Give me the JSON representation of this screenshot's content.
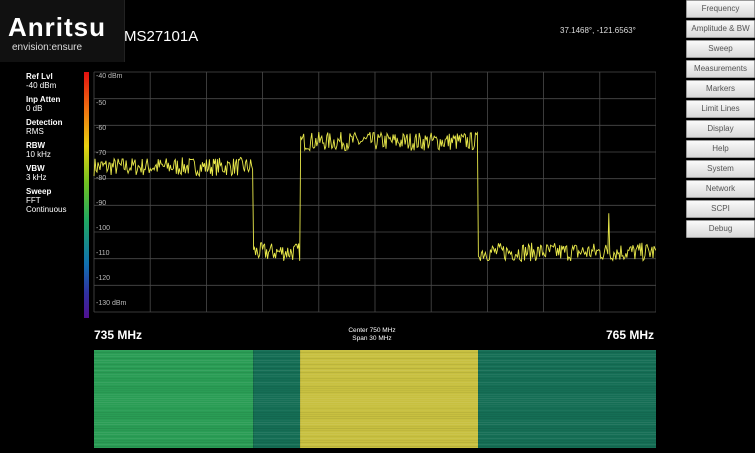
{
  "brand": {
    "logo": "Anritsu",
    "tagline": "envision:ensure"
  },
  "model": "MS27101A",
  "gps": "37.1468°, -121.6563°",
  "params": [
    {
      "label": "Ref Lvl",
      "value": "-40 dBm"
    },
    {
      "label": "Inp Atten",
      "value": "0 dB"
    },
    {
      "label": "Detection",
      "value": "RMS"
    },
    {
      "label": "RBW",
      "value": "10 kHz"
    },
    {
      "label": "VBW",
      "value": "3 kHz"
    },
    {
      "label": "Sweep",
      "value": "FFT"
    },
    {
      "label": "",
      "value": "Continuous"
    }
  ],
  "menu": [
    "Frequency",
    "Amplitude & BW",
    "Sweep",
    "Measurements",
    "Markers",
    "Limit Lines",
    "Display",
    "Help",
    "System",
    "Network",
    "SCPI",
    "Debug"
  ],
  "y_axis": [
    "-40 dBm",
    "-50",
    "-60",
    "-70",
    "-80",
    "-90",
    "-100",
    "-110",
    "-120",
    "-130 dBm"
  ],
  "freq": {
    "start": "735 MHz",
    "stop": "765 MHz",
    "center": "Center 750 MHz",
    "span": "Span 30 MHz"
  },
  "chart_data": {
    "type": "line",
    "x_range_mhz": [
      735,
      765
    ],
    "ylim": [
      -130,
      -40
    ],
    "trace_color": "#e8e84a",
    "segments": [
      {
        "from_mhz": 735,
        "to_mhz": 743.5,
        "level_dbm": -75.5
      },
      {
        "from_mhz": 743.5,
        "to_mhz": 746,
        "level_dbm": -107.5
      },
      {
        "from_mhz": 746,
        "to_mhz": 755.5,
        "level_dbm": -66
      },
      {
        "from_mhz": 755.5,
        "to_mhz": 765,
        "level_dbm": -107.5
      }
    ],
    "spur": {
      "x_mhz": 762.5,
      "level_dbm": -93
    }
  },
  "colors": {
    "waterfall_bg": "#1a8a60",
    "waterfall_low": "#156e55",
    "waterfall_high": "#c8c040"
  }
}
